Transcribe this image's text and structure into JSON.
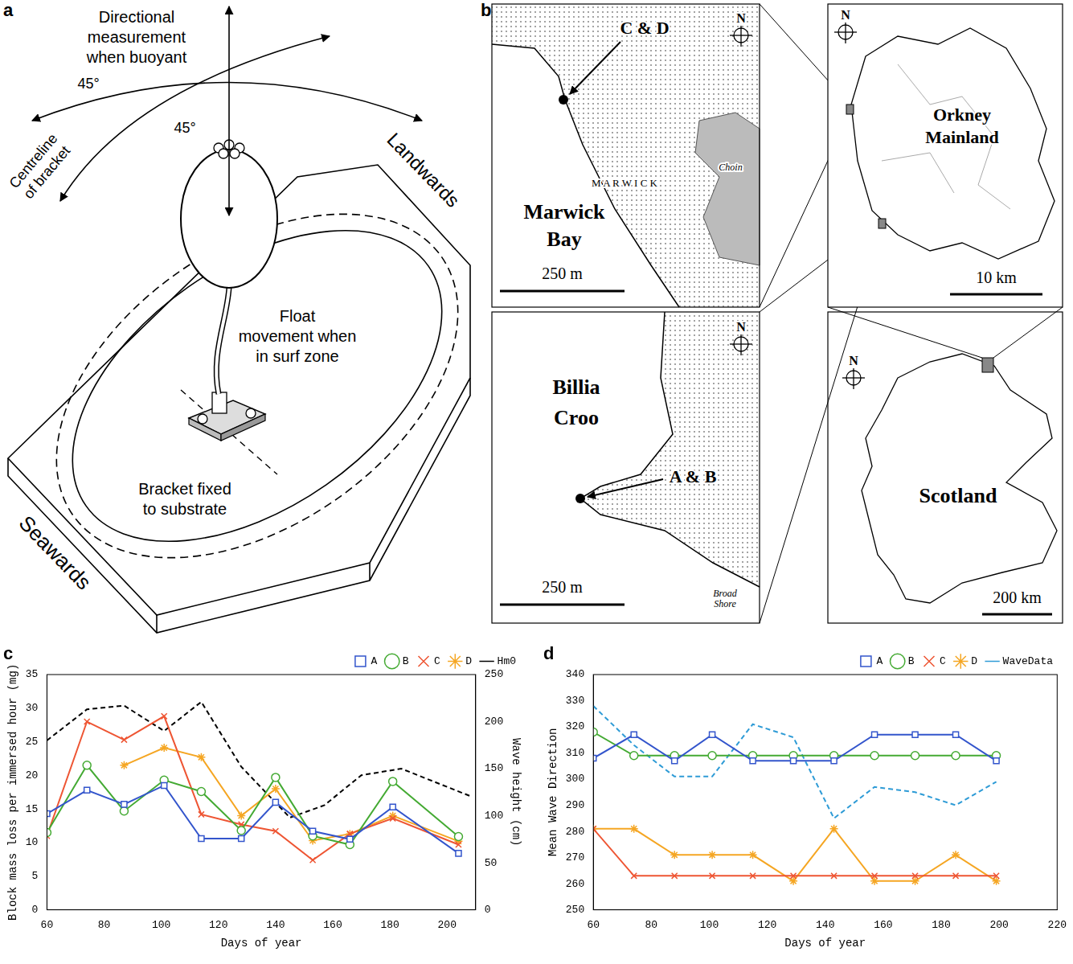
{
  "diagram": {
    "panel": "a",
    "labels": {
      "measurement": "Directional measurement when buoyant",
      "angle_left": "45°",
      "angle_right": "45°",
      "centreline": "Centreline of bracket",
      "landwards": "Landwards",
      "float_movement": "Float movement when in surf zone",
      "bracket": "Bracket fixed to substrate",
      "seawards": "Seawards"
    }
  },
  "map": {
    "panel": "b",
    "marwick": {
      "site": "C & D",
      "north": "N",
      "bay_lettering": "M A R W I C K",
      "loch": "Choin",
      "name": "Marwick Bay",
      "scale": "250 m"
    },
    "billia": {
      "site": "A & B",
      "north": "N",
      "name": "Billia Croo",
      "shore": "Broad Shore",
      "scale": "250 m"
    },
    "orkney": {
      "north": "N",
      "name": "Orkney Mainland",
      "scale": "10 km"
    },
    "scotland": {
      "north": "N",
      "name": "Scotland",
      "scale": "200 km"
    }
  },
  "chart_data": [
    {
      "panel": "c",
      "type": "line",
      "xlabel": "Days of year",
      "ylabel": "Block mass loss per immersed hour (mg)",
      "y2label": "Wave height (cm)",
      "xlim": [
        60,
        210
      ],
      "xticks": [
        60,
        80,
        100,
        120,
        140,
        160,
        180,
        200
      ],
      "ylim": [
        0,
        35
      ],
      "yticks": [
        0,
        5,
        10,
        15,
        20,
        25,
        30,
        35
      ],
      "y2lim": [
        0,
        250
      ],
      "y2ticks": [
        0,
        50,
        100,
        150,
        200,
        250
      ],
      "grid": false,
      "legend": "top",
      "series": [
        {
          "name": "A",
          "color": "#3355cc",
          "marker": "square",
          "line_style": "solid",
          "x": [
            60,
            74,
            87,
            101,
            114,
            128,
            140,
            153,
            166,
            181,
            204
          ],
          "values": [
            14.3,
            17.8,
            15.7,
            18.5,
            10.6,
            10.6,
            16.0,
            11.7,
            10.5,
            15.3,
            8.4
          ]
        },
        {
          "name": "B",
          "color": "#44aa33",
          "marker": "circle",
          "line_style": "solid",
          "x": [
            60,
            74,
            87,
            101,
            114,
            128,
            140,
            153,
            166,
            181,
            204
          ],
          "values": [
            11.5,
            21.5,
            14.7,
            19.3,
            17.6,
            11.8,
            19.7,
            11.0,
            9.7,
            19.1,
            10.9
          ]
        },
        {
          "name": "C",
          "color": "#ee5533",
          "marker": "x",
          "line_style": "solid",
          "x": [
            60,
            74,
            87,
            101,
            114,
            128,
            140,
            153,
            166,
            181,
            204
          ],
          "values": [
            11.0,
            28.0,
            25.3,
            28.8,
            14.2,
            12.7,
            11.7,
            7.4,
            11.3,
            13.6,
            9.7
          ]
        },
        {
          "name": "D",
          "color": "#f5a623",
          "marker": "star",
          "line_style": "solid",
          "x": [
            87,
            101,
            114,
            128,
            140,
            153,
            166,
            181,
            204
          ],
          "values": [
            21.5,
            24.1,
            22.7,
            14.0,
            18.0,
            10.3,
            11.3,
            14.0,
            10.2
          ]
        },
        {
          "name": "Hm0",
          "color": "#000000",
          "line_style": "dashed",
          "axis": "y2",
          "x": [
            60,
            74,
            87,
            101,
            114,
            128,
            145,
            157,
            170,
            184,
            208
          ],
          "values": [
            180,
            213,
            217,
            190,
            221,
            152,
            98,
            111,
            143,
            150,
            121
          ]
        }
      ]
    },
    {
      "panel": "d",
      "type": "line",
      "xlabel": "Days of year",
      "ylabel": "Mean Wave Direction",
      "xlim": [
        60,
        220
      ],
      "xticks": [
        60,
        80,
        100,
        120,
        140,
        160,
        180,
        200,
        220
      ],
      "ylim": [
        250,
        340
      ],
      "yticks": [
        250,
        260,
        270,
        280,
        290,
        300,
        310,
        320,
        330,
        340
      ],
      "grid": false,
      "legend": "top",
      "series": [
        {
          "name": "A",
          "color": "#3355cc",
          "marker": "square",
          "line_style": "solid",
          "x": [
            60,
            74,
            88,
            101,
            115,
            129,
            143,
            157,
            171,
            185,
            199
          ],
          "values": [
            308,
            317,
            307,
            317,
            307,
            307,
            307,
            317,
            317,
            317,
            307
          ]
        },
        {
          "name": "B",
          "color": "#44aa33",
          "marker": "circle",
          "line_style": "solid",
          "x": [
            60,
            74,
            88,
            101,
            115,
            129,
            143,
            157,
            171,
            185,
            199
          ],
          "values": [
            318,
            309,
            309,
            309,
            309,
            309,
            309,
            309,
            309,
            309,
            309
          ]
        },
        {
          "name": "C",
          "color": "#ee5533",
          "marker": "x",
          "line_style": "solid",
          "x": [
            60,
            74,
            88,
            101,
            115,
            129,
            143,
            157,
            171,
            185,
            199
          ],
          "values": [
            281,
            263,
            263,
            263,
            263,
            263,
            263,
            263,
            263,
            263,
            263
          ]
        },
        {
          "name": "D",
          "color": "#f5a623",
          "marker": "star",
          "line_style": "solid",
          "x": [
            60,
            74,
            88,
            101,
            115,
            129,
            143,
            157,
            171,
            185,
            199
          ],
          "values": [
            281,
            281,
            271,
            271,
            271,
            261,
            281,
            261,
            261,
            271,
            261
          ]
        },
        {
          "name": "WaveData",
          "color": "#2e9bd6",
          "line_style": "dashed",
          "x": [
            60,
            74,
            88,
            101,
            115,
            129,
            143,
            157,
            171,
            185,
            199
          ],
          "values": [
            328,
            313,
            301,
            301,
            321,
            316,
            285,
            297,
            295,
            290,
            299
          ]
        }
      ]
    }
  ]
}
